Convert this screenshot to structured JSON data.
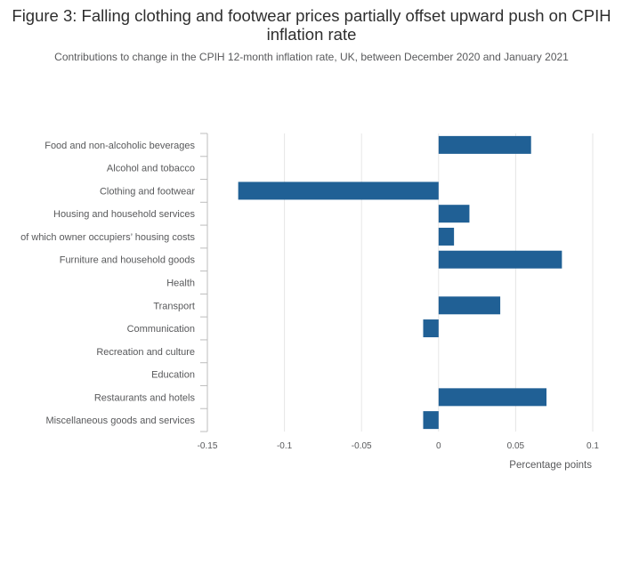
{
  "title": "Figure 3: Falling clothing and footwear prices partially offset upward push on CPIH inflation rate",
  "subtitle": "Contributions to change in the CPIH 12-month inflation rate, UK, between December 2020 and January 2021",
  "chart_data": {
    "type": "bar",
    "orientation": "horizontal",
    "title": "Figure 3: Falling clothing and footwear prices partially offset upward push on CPIH inflation rate",
    "subtitle": "Contributions to change in the CPIH 12-month inflation rate, UK, between December 2020 and January 2021",
    "xlabel": "Percentage points",
    "ylabel": "",
    "xlim": [
      -0.15,
      0.1
    ],
    "xticks": [
      -0.15,
      -0.1,
      -0.05,
      0,
      0.05,
      0.1
    ],
    "xtick_labels": [
      "-0.15",
      "-0.1",
      "-0.05",
      "0",
      "0.05",
      "0.1"
    ],
    "grid": true,
    "categories": [
      "Food and non-alcoholic beverages",
      "Alcohol and tobacco",
      "Clothing and footwear",
      "Housing and household services",
      "of which owner occupiers’ housing costs",
      "Furniture and household goods",
      "Health",
      "Transport",
      "Communication",
      "Recreation and culture",
      "Education",
      "Restaurants and hotels",
      "Miscellaneous goods and services"
    ],
    "values": [
      0.06,
      0,
      -0.13,
      0.02,
      0.01,
      0.08,
      0,
      0.04,
      -0.01,
      0,
      0,
      0.07,
      -0.01
    ],
    "bar_color": "#206095"
  }
}
